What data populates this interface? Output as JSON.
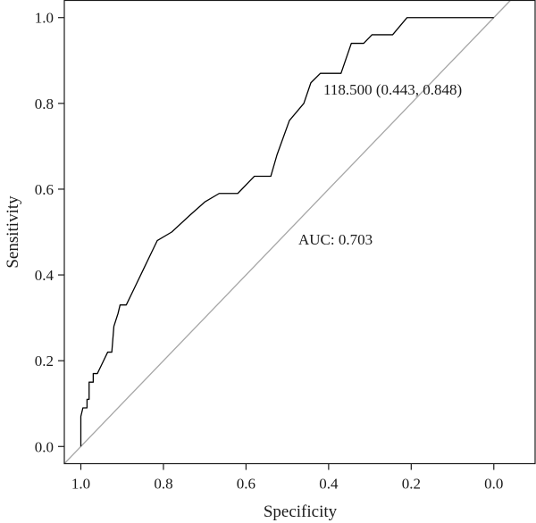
{
  "chart_data": {
    "type": "line",
    "xlabel": "Specificity",
    "ylabel": "Sensitivity",
    "x_reversed": true,
    "xlim": [
      1.04,
      -0.1
    ],
    "ylim": [
      -0.04,
      1.04
    ],
    "x_ticks": [
      1.0,
      0.8,
      0.6,
      0.4,
      0.2,
      0.0
    ],
    "x_tick_labels": [
      "1.0",
      "0.8",
      "0.6",
      "0.4",
      "0.2",
      "0.0"
    ],
    "y_ticks": [
      0.0,
      0.2,
      0.4,
      0.6,
      0.8,
      1.0
    ],
    "y_tick_labels": [
      "0.0",
      "0.2",
      "0.4",
      "0.6",
      "0.8",
      "1.0"
    ],
    "grid": false,
    "series": [
      {
        "color": "#000000",
        "points": [
          [
            1.0,
            0.0
          ],
          [
            1.0,
            0.04
          ],
          [
            1.0,
            0.07
          ],
          [
            0.995,
            0.09
          ],
          [
            0.985,
            0.09
          ],
          [
            0.985,
            0.11
          ],
          [
            0.98,
            0.11
          ],
          [
            0.98,
            0.15
          ],
          [
            0.97,
            0.15
          ],
          [
            0.97,
            0.17
          ],
          [
            0.96,
            0.17
          ],
          [
            0.95,
            0.19
          ],
          [
            0.935,
            0.22
          ],
          [
            0.925,
            0.22
          ],
          [
            0.92,
            0.28
          ],
          [
            0.91,
            0.31
          ],
          [
            0.905,
            0.33
          ],
          [
            0.89,
            0.33
          ],
          [
            0.87,
            0.37
          ],
          [
            0.845,
            0.42
          ],
          [
            0.83,
            0.45
          ],
          [
            0.815,
            0.48
          ],
          [
            0.78,
            0.5
          ],
          [
            0.735,
            0.54
          ],
          [
            0.7,
            0.57
          ],
          [
            0.665,
            0.59
          ],
          [
            0.62,
            0.59
          ],
          [
            0.58,
            0.63
          ],
          [
            0.54,
            0.63
          ],
          [
            0.525,
            0.68
          ],
          [
            0.495,
            0.76
          ],
          [
            0.46,
            0.8
          ],
          [
            0.443,
            0.848
          ],
          [
            0.42,
            0.87
          ],
          [
            0.37,
            0.87
          ],
          [
            0.345,
            0.94
          ],
          [
            0.315,
            0.94
          ],
          [
            0.295,
            0.96
          ],
          [
            0.245,
            0.96
          ],
          [
            0.21,
            1.0
          ],
          [
            0.0,
            1.0
          ]
        ]
      }
    ],
    "reference_line": {
      "from": [
        1.04,
        -0.04
      ],
      "to": [
        -0.04,
        1.04
      ],
      "color": "#a6a6a6"
    },
    "annotations": [
      {
        "text": "118.500 (0.443, 0.848)",
        "x": 0.443,
        "y": 0.848
      },
      {
        "text": "AUC: 0.703",
        "x": 0.5,
        "y": 0.5
      }
    ]
  }
}
